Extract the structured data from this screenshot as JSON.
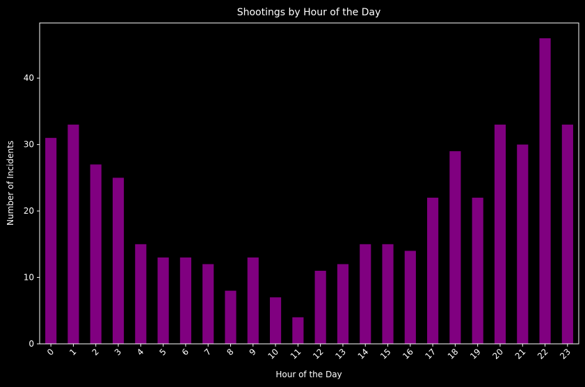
{
  "chart_data": {
    "type": "bar",
    "title": "Shootings by Hour of the Day",
    "xlabel": "Hour of the Day",
    "ylabel": "Number of Incidents",
    "categories": [
      "0",
      "1",
      "2",
      "3",
      "4",
      "5",
      "6",
      "7",
      "8",
      "9",
      "10",
      "11",
      "12",
      "13",
      "14",
      "15",
      "16",
      "17",
      "18",
      "19",
      "20",
      "21",
      "22",
      "23"
    ],
    "values": [
      31,
      33,
      27,
      25,
      15,
      13,
      13,
      12,
      8,
      13,
      7,
      4,
      11,
      12,
      15,
      15,
      14,
      22,
      29,
      22,
      33,
      30,
      46,
      33
    ],
    "ylim": [
      0,
      48.3
    ],
    "yticks": [
      0,
      10,
      20,
      30,
      40
    ],
    "xtick_rotation": 45,
    "grid": false,
    "colors": {
      "background": "#000000",
      "bar": "#800080",
      "axes": "#ffffff",
      "text": "#ffffff"
    }
  }
}
